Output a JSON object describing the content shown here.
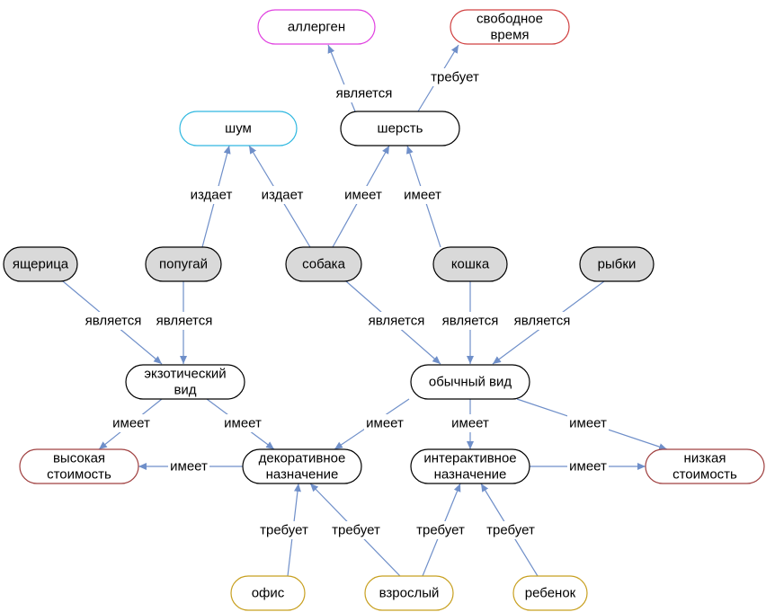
{
  "colors": {
    "edge": "#6f8fc9",
    "default_border": "#000000",
    "default_fill": "#ffffff",
    "animal_fill": "#d9d9d9",
    "allergen_border": "#e040e0",
    "free_time_border": "#d04040",
    "noise_border": "#30b8e0",
    "cost_border": "#a04040",
    "requirement_border": "#c8a020"
  },
  "nodes": [
    {
      "id": "allergen",
      "lines": [
        "аллерген"
      ],
      "style": "allergen"
    },
    {
      "id": "free-time",
      "lines": [
        "свободное",
        "время"
      ],
      "style": "free_time"
    },
    {
      "id": "noise",
      "lines": [
        "шум"
      ],
      "style": "noise"
    },
    {
      "id": "fur",
      "lines": [
        "шерсть"
      ],
      "style": "default"
    },
    {
      "id": "lizard",
      "lines": [
        "ящерица"
      ],
      "style": "animal"
    },
    {
      "id": "parrot",
      "lines": [
        "попугай"
      ],
      "style": "animal"
    },
    {
      "id": "dog",
      "lines": [
        "собака"
      ],
      "style": "animal"
    },
    {
      "id": "cat",
      "lines": [
        "кошка"
      ],
      "style": "animal"
    },
    {
      "id": "fish",
      "lines": [
        "рыбки"
      ],
      "style": "animal"
    },
    {
      "id": "exotic",
      "lines": [
        "экзотический",
        "вид"
      ],
      "style": "default"
    },
    {
      "id": "common",
      "lines": [
        "обычный вид"
      ],
      "style": "default"
    },
    {
      "id": "high-cost",
      "lines": [
        "высокая",
        "стоимость"
      ],
      "style": "cost"
    },
    {
      "id": "decorative",
      "lines": [
        "декоративное",
        "назначение"
      ],
      "style": "default"
    },
    {
      "id": "interactive",
      "lines": [
        "интерактивное",
        "назначение"
      ],
      "style": "default"
    },
    {
      "id": "low-cost",
      "lines": [
        "низкая",
        "стоимость"
      ],
      "style": "cost"
    },
    {
      "id": "office",
      "lines": [
        "офис"
      ],
      "style": "requirement"
    },
    {
      "id": "adult",
      "lines": [
        "взрослый"
      ],
      "style": "requirement"
    },
    {
      "id": "child",
      "lines": [
        "ребенок"
      ],
      "style": "requirement"
    }
  ],
  "edges": [
    {
      "from": "fur",
      "to": "allergen",
      "label": "является"
    },
    {
      "from": "fur",
      "to": "free-time",
      "label": "требует"
    },
    {
      "from": "parrot",
      "to": "noise",
      "label": "издает"
    },
    {
      "from": "dog",
      "to": "noise",
      "label": "издает"
    },
    {
      "from": "dog",
      "to": "fur",
      "label": "имеет"
    },
    {
      "from": "cat",
      "to": "fur",
      "label": "имеет"
    },
    {
      "from": "lizard",
      "to": "exotic",
      "label": "является"
    },
    {
      "from": "parrot",
      "to": "exotic",
      "label": "является"
    },
    {
      "from": "dog",
      "to": "common",
      "label": "является"
    },
    {
      "from": "cat",
      "to": "common",
      "label": "является"
    },
    {
      "from": "fish",
      "to": "common",
      "label": "является"
    },
    {
      "from": "exotic",
      "to": "high-cost",
      "label": "имеет"
    },
    {
      "from": "exotic",
      "to": "decorative",
      "label": "имеет"
    },
    {
      "from": "decorative",
      "to": "high-cost",
      "label": "имеет"
    },
    {
      "from": "common",
      "to": "decorative",
      "label": "имеет"
    },
    {
      "from": "common",
      "to": "interactive",
      "label": "имеет"
    },
    {
      "from": "common",
      "to": "low-cost",
      "label": "имеет"
    },
    {
      "from": "interactive",
      "to": "low-cost",
      "label": "имеет"
    },
    {
      "from": "office",
      "to": "decorative",
      "label": "требует"
    },
    {
      "from": "adult",
      "to": "decorative",
      "label": "требует"
    },
    {
      "from": "adult",
      "to": "interactive",
      "label": "требует"
    },
    {
      "from": "child",
      "to": "interactive",
      "label": "требует"
    }
  ]
}
